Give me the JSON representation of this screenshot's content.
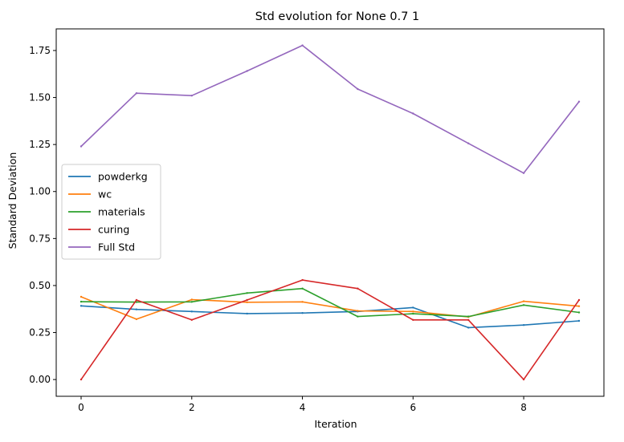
{
  "chart_data": {
    "type": "line",
    "title": "Std evolution for None 0.7 1",
    "xlabel": "Iteration",
    "ylabel": "Standard Deviation",
    "x": [
      0,
      1,
      2,
      3,
      4,
      5,
      6,
      7,
      8,
      9
    ],
    "xlim": [
      -0.45,
      9.45
    ],
    "ylim": [
      -0.089,
      1.865
    ],
    "xticks": [
      0,
      2,
      4,
      6,
      8
    ],
    "xtick_labels": [
      "0",
      "2",
      "4",
      "6",
      "8"
    ],
    "yticks": [
      0.0,
      0.25,
      0.5,
      0.75,
      1.0,
      1.25,
      1.5,
      1.75
    ],
    "ytick_labels": [
      "0.00",
      "0.25",
      "0.50",
      "0.75",
      "1.00",
      "1.25",
      "1.50",
      "1.75"
    ],
    "grid": false,
    "legend_position": "center-left",
    "series": [
      {
        "name": "powderkg",
        "color": "#1f77b4",
        "values": [
          0.392,
          0.373,
          0.362,
          0.351,
          0.354,
          0.362,
          0.383,
          0.276,
          0.29,
          0.312
        ]
      },
      {
        "name": "wc",
        "color": "#ff7f0e",
        "values": [
          0.44,
          0.321,
          0.425,
          0.411,
          0.413,
          0.365,
          0.362,
          0.333,
          0.416,
          0.39
        ]
      },
      {
        "name": "materials",
        "color": "#2ca02c",
        "values": [
          0.414,
          0.412,
          0.413,
          0.46,
          0.484,
          0.335,
          0.35,
          0.335,
          0.396,
          0.357
        ]
      },
      {
        "name": "curing",
        "color": "#d62728",
        "values": [
          0.0,
          0.423,
          0.317,
          0.423,
          0.529,
          0.484,
          0.317,
          0.317,
          0.0,
          0.423
        ]
      },
      {
        "name": "Full Std",
        "color": "#9467bd",
        "values": [
          1.24,
          1.523,
          1.51,
          1.641,
          1.777,
          1.545,
          1.415,
          1.256,
          1.098,
          1.478
        ]
      }
    ]
  }
}
